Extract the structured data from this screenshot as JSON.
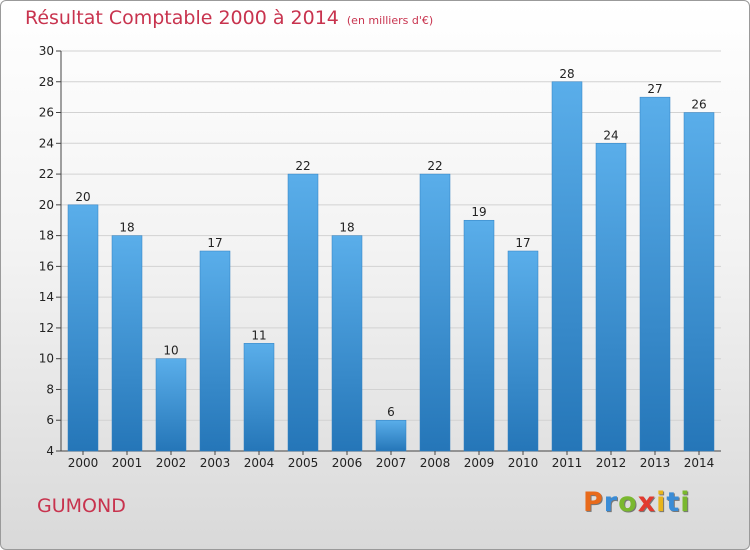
{
  "header": {
    "title": "Résultat Comptable 2000 à 2014",
    "unit": "(en milliers d'€)"
  },
  "town": "GUMOND",
  "logo": {
    "letters": [
      "P",
      "r",
      "o",
      "x",
      "i",
      "t",
      "i"
    ],
    "colors": [
      "#e86a1b",
      "#3a8cd6",
      "#7ab82f",
      "#e23a2f",
      "#e8b41b",
      "#3a8cd6",
      "#7ab82f"
    ]
  },
  "colors": {
    "bar_top": "#5aaeea",
    "bar_bottom": "#2576b8",
    "title": "#c8334e"
  },
  "chart_data": {
    "type": "bar",
    "categories": [
      "2000",
      "2001",
      "2002",
      "2003",
      "2004",
      "2005",
      "2006",
      "2007",
      "2008",
      "2009",
      "2010",
      "2011",
      "2012",
      "2013",
      "2014"
    ],
    "values": [
      20,
      18,
      10,
      17,
      11,
      22,
      18,
      6,
      22,
      19,
      17,
      28,
      24,
      27,
      26
    ],
    "title": "Résultat Comptable 2000 à 2014",
    "xlabel": "",
    "ylabel": "",
    "ylim": [
      4,
      30
    ],
    "yticks": [
      4,
      6,
      8,
      10,
      12,
      14,
      16,
      18,
      20,
      22,
      24,
      26,
      28,
      30
    ],
    "grid": true
  }
}
